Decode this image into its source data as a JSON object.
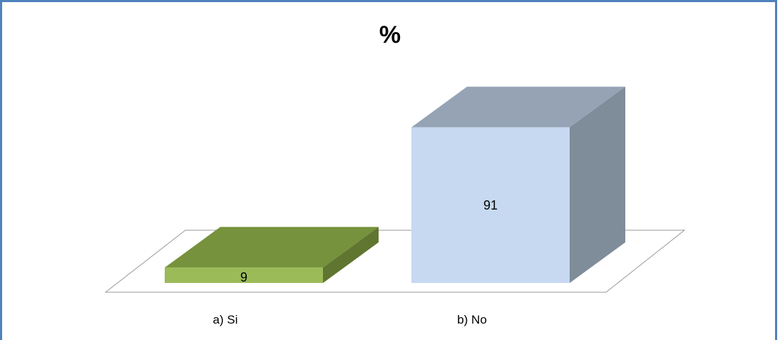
{
  "chart_data": {
    "type": "bar",
    "title": "%",
    "categories": [
      "a) Si",
      "b) No"
    ],
    "values": [
      9,
      91
    ],
    "ylim": [
      0,
      100
    ],
    "legend": "none",
    "grid": false,
    "colors": {
      "si_front": "#9bbb59",
      "si_top": "#76923c",
      "si_side": "#5f7530",
      "no_front": "#c6d9f1",
      "no_top": "#95a3b5",
      "no_side": "#7f8c99",
      "floor": "#999999"
    }
  }
}
